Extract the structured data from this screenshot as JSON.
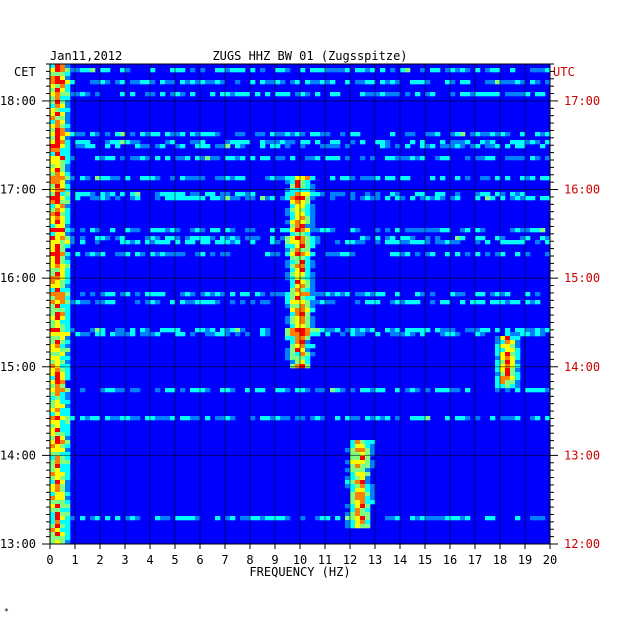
{
  "chart_data": {
    "type": "heatmap",
    "title": "ZUGS HHZ BW 01 (Zugsspitze)",
    "date": "Jan11,2012",
    "xlabel": "FREQUENCY (HZ)",
    "xlim": [
      0,
      20
    ],
    "x_ticks": [
      "0",
      "1",
      "2",
      "3",
      "4",
      "5",
      "6",
      "7",
      "8",
      "9",
      "10",
      "11",
      "12",
      "13",
      "14",
      "15",
      "16",
      "17",
      "18",
      "19",
      "20"
    ],
    "left_axis": {
      "label": "CET",
      "ticks": [
        "18:00",
        "17:00",
        "16:00",
        "15:00",
        "14:00",
        "13:00"
      ],
      "color": "#000000"
    },
    "right_axis": {
      "label": "UTC",
      "ticks": [
        "17:00",
        "16:00",
        "15:00",
        "14:00",
        "13:00",
        "12:00"
      ],
      "color": "#cc0000"
    },
    "time_range_cet": [
      "13:00",
      "18:25"
    ],
    "colormap": [
      "#00007f",
      "#0000ff",
      "#0080ff",
      "#00ffff",
      "#80ff80",
      "#ffff00",
      "#ff8000",
      "#ff0000"
    ],
    "features": [
      {
        "freq_hz": 0.3,
        "time_range_cet": [
          "13:00",
          "18:25"
        ]
      },
      {
        "freq_hz": 10.0,
        "time_range_cet": [
          "15:00",
          "17:10"
        ]
      },
      {
        "freq_hz": 12.4,
        "time_range_cet": [
          "13:10",
          "14:10"
        ]
      },
      {
        "freq_hz": 18.3,
        "time_range_cet": [
          "14:45",
          "15:20"
        ]
      }
    ],
    "grid": true
  },
  "footer_mark": "*"
}
